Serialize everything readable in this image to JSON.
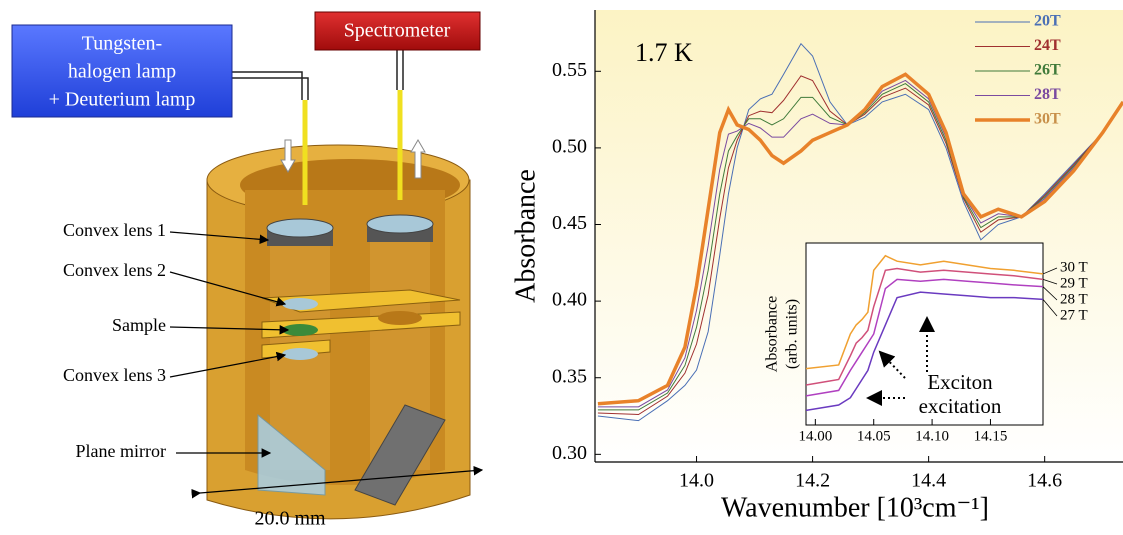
{
  "diagram": {
    "lamp_box": [
      "Tungsten-",
      "halogen lamp",
      "+ Deuterium lamp"
    ],
    "spectrometer": "Spectrometer",
    "labels": [
      "Convex lens 1",
      "Convex lens 2",
      "Sample",
      "Convex lens 3",
      "Plane mirror"
    ],
    "dimension": "20.0 mm"
  },
  "chart_data": [
    {
      "type": "line",
      "annotations": [
        "1.7 K"
      ],
      "xlabel": "Wavenumber [10³cm⁻¹]",
      "ylabel": "Absorbance",
      "legend": "upper right",
      "x": [
        13.83,
        13.9,
        13.95,
        13.98,
        14.0,
        14.02,
        14.04,
        14.055,
        14.07,
        14.09,
        14.11,
        14.13,
        14.15,
        14.18,
        14.2,
        14.23,
        14.26,
        14.29,
        14.32,
        14.36,
        14.4,
        14.43,
        14.46,
        14.49,
        14.52,
        14.56,
        14.6,
        14.65,
        14.7,
        14.735
      ],
      "series": [
        {
          "name": "20T",
          "color": "#4a6fb5",
          "linewidth": 1,
          "values": [
            0.325,
            0.322,
            0.335,
            0.345,
            0.355,
            0.38,
            0.43,
            0.47,
            0.5,
            0.525,
            0.532,
            0.535,
            0.548,
            0.568,
            0.56,
            0.53,
            0.515,
            0.52,
            0.53,
            0.535,
            0.525,
            0.5,
            0.465,
            0.44,
            0.45,
            0.455,
            0.47,
            0.49,
            0.51,
            0.53
          ]
        },
        {
          "name": "24T",
          "color": "#a03030",
          "linewidth": 1,
          "values": [
            0.327,
            0.326,
            0.338,
            0.353,
            0.372,
            0.404,
            0.454,
            0.487,
            0.505,
            0.521,
            0.524,
            0.523,
            0.531,
            0.547,
            0.544,
            0.524,
            0.515,
            0.522,
            0.533,
            0.539,
            0.528,
            0.503,
            0.467,
            0.445,
            0.453,
            0.455,
            0.469,
            0.489,
            0.51,
            0.53
          ]
        },
        {
          "name": "26T",
          "color": "#3f7a3a",
          "linewidth": 1,
          "values": [
            0.329,
            0.329,
            0.34,
            0.358,
            0.383,
            0.42,
            0.47,
            0.498,
            0.508,
            0.519,
            0.519,
            0.515,
            0.519,
            0.533,
            0.533,
            0.52,
            0.515,
            0.523,
            0.535,
            0.542,
            0.53,
            0.505,
            0.468,
            0.448,
            0.455,
            0.455,
            0.468,
            0.488,
            0.51,
            0.53
          ]
        },
        {
          "name": "28T",
          "color": "#7a4aa0",
          "linewidth": 1,
          "values": [
            0.331,
            0.331,
            0.342,
            0.363,
            0.394,
            0.436,
            0.486,
            0.509,
            0.511,
            0.516,
            0.513,
            0.507,
            0.507,
            0.519,
            0.522,
            0.516,
            0.515,
            0.524,
            0.537,
            0.544,
            0.532,
            0.507,
            0.469,
            0.451,
            0.457,
            0.455,
            0.467,
            0.487,
            0.51,
            0.53
          ]
        },
        {
          "name": "30T",
          "color": "#e8822a",
          "linewidth": 3.5,
          "values": [
            0.333,
            0.335,
            0.345,
            0.37,
            0.41,
            0.46,
            0.51,
            0.525,
            0.515,
            0.512,
            0.505,
            0.495,
            0.49,
            0.498,
            0.505,
            0.51,
            0.515,
            0.525,
            0.54,
            0.548,
            0.535,
            0.51,
            0.47,
            0.455,
            0.46,
            0.455,
            0.465,
            0.485,
            0.51,
            0.53
          ]
        }
      ],
      "legend_colors": [
        "#4a6fb5",
        "#a03030",
        "#3f7a3a",
        "#7a4aa0",
        "#c8904a"
      ],
      "xlim": [
        13.825,
        14.735
      ],
      "ylim": [
        0.295,
        0.59
      ],
      "xticks": [
        {
          "value": 14.0,
          "label": "14.0"
        },
        14.2,
        14.4,
        14.6
      ],
      "yticks": [
        {
          "value": 0.3,
          "label": "0.30"
        },
        0.35,
        {
          "value": 0.4,
          "label": "0.40"
        },
        0.45,
        {
          "value": 0.5,
          "label": "0.50"
        },
        0.55
      ]
    },
    {
      "type": "line",
      "ylabel": [
        "Absorbance",
        "(arb. units)"
      ],
      "annotations": [
        "Exciton",
        "excitation"
      ],
      "x": [
        13.992,
        14.02,
        14.03,
        14.035,
        14.04,
        14.045,
        14.05,
        14.06,
        14.07,
        14.09,
        14.11,
        14.13,
        14.15,
        14.17,
        14.195
      ],
      "series": [
        {
          "name": "30 T",
          "color": "#f0a030",
          "linewidth": 1.5,
          "values": [
            0.31,
            0.33,
            0.5,
            0.55,
            0.58,
            0.62,
            0.85,
            0.93,
            0.9,
            0.88,
            0.9,
            0.88,
            0.86,
            0.85,
            0.83
          ]
        },
        {
          "name": "29 T",
          "color": "#d0507a",
          "linewidth": 1.5,
          "values": [
            0.22,
            0.25,
            0.38,
            0.45,
            0.48,
            0.52,
            0.65,
            0.85,
            0.86,
            0.84,
            0.85,
            0.84,
            0.83,
            0.82,
            0.8
          ]
        },
        {
          "name": "28 T",
          "color": "#b040c0",
          "linewidth": 1.5,
          "values": [
            0.16,
            0.19,
            0.3,
            0.35,
            0.4,
            0.45,
            0.5,
            0.75,
            0.8,
            0.79,
            0.8,
            0.79,
            0.78,
            0.77,
            0.76
          ]
        },
        {
          "name": "27 T",
          "color": "#6a3ac0",
          "linewidth": 1.5,
          "values": [
            0.08,
            0.11,
            0.15,
            0.2,
            0.25,
            0.3,
            0.4,
            0.55,
            0.7,
            0.73,
            0.72,
            0.71,
            0.7,
            0.7,
            0.69
          ]
        }
      ],
      "xlim": [
        13.992,
        14.195
      ],
      "ylim": [
        0,
        1
      ],
      "xticks": [
        {
          "value": 14.0,
          "label": "14.00"
        },
        14.05,
        {
          "value": 14.1,
          "label": "14.10"
        },
        14.15
      ]
    }
  ]
}
